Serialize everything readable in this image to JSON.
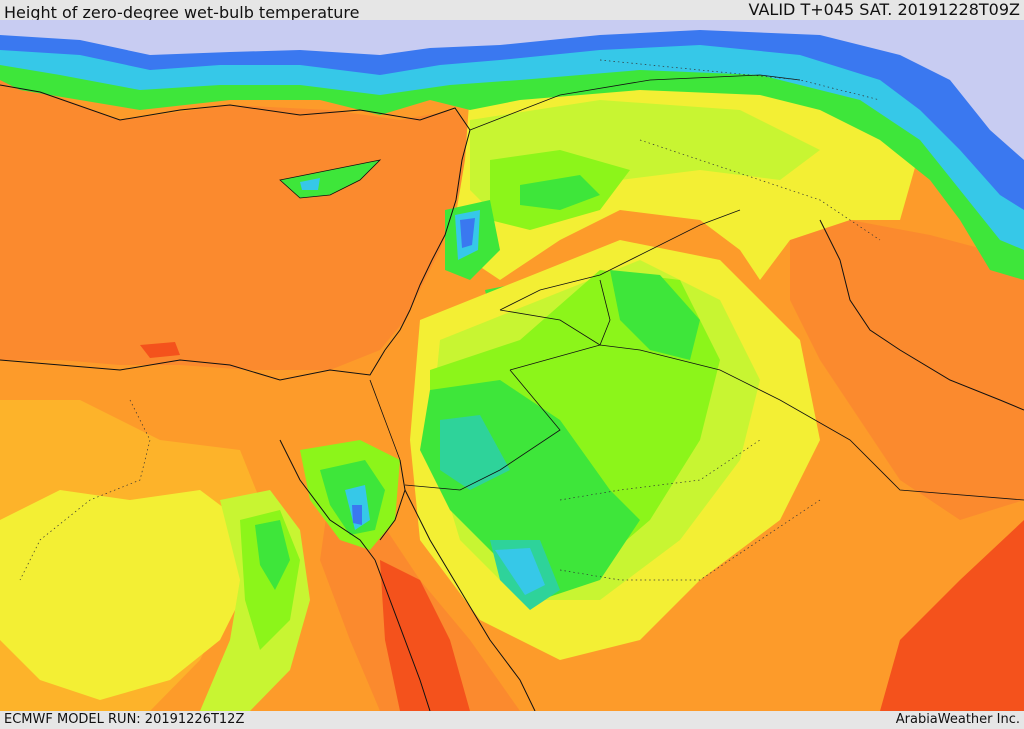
{
  "header": {
    "title": "Height of zero-degree wet-bulb temperature",
    "valid": "VALID T+045 SAT. 20191228T09Z"
  },
  "footer": {
    "model_run": "ECMWF MODEL RUN: 20191226T12Z",
    "provider": "ArabiaWeather Inc."
  },
  "palette": {
    "orange_sea": "#fb8a2e",
    "orange": "#fd9b2a",
    "amber": "#fdb32a",
    "yellow": "#f3ef34",
    "yellow_green": "#c8f532",
    "lime": "#8cf51a",
    "green": "#3ee63a",
    "teal": "#2ed39a",
    "cyan": "#36c8e8",
    "blue": "#3a78f0",
    "lavender": "#c8ccf2",
    "red_orange": "#f4521c",
    "border": "#111111"
  }
}
